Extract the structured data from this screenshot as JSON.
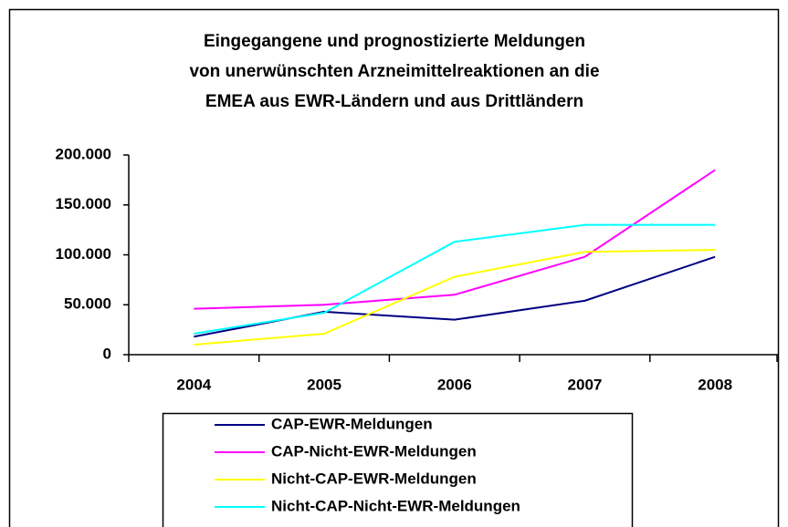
{
  "chart_data": {
    "type": "line",
    "title": [
      "Eingegangene und prognostizierte Meldungen",
      "von unerwünschten Arzneimittelreaktionen an die",
      "EMEA aus EWR-Ländern und aus Drittländern"
    ],
    "categories": [
      "2004",
      "2005",
      "2006",
      "2007",
      "2008"
    ],
    "series": [
      {
        "name": "CAP-EWR-Meldungen",
        "color": "#000080",
        "values": [
          18000,
          43000,
          35000,
          54000,
          98000
        ]
      },
      {
        "name": "CAP-Nicht-EWR-Meldungen",
        "color": "#ff00ff",
        "values": [
          46000,
          50000,
          60000,
          98000,
          185000
        ]
      },
      {
        "name": "Nicht-CAP-EWR-Meldungen",
        "color": "#ffff00",
        "values": [
          10000,
          21000,
          78000,
          103000,
          105000
        ]
      },
      {
        "name": "Nicht-CAP-Nicht-EWR-Meldungen",
        "color": "#00ffff",
        "values": [
          21000,
          42000,
          113000,
          130000,
          130000
        ]
      }
    ],
    "ylim": [
      0,
      200000
    ],
    "yticks": [
      0,
      {
        "value": 50000,
        "label": "50.000"
      },
      {
        "value": 100000,
        "label": "100.000"
      },
      {
        "value": 150000,
        "label": "150.000"
      },
      {
        "value": 200000,
        "label": "200.000"
      }
    ],
    "grid": false
  }
}
